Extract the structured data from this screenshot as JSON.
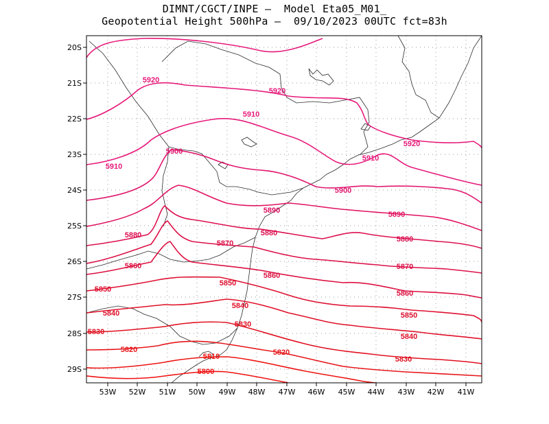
{
  "header": {
    "line1": "DIMNT/CGCT/INPE –  Model Eta05_M01_",
    "line2": "Geopotential Height 500hPa –  09/10/2023 00UTC fct=83h"
  },
  "map": {
    "lat_labels": [
      "20S",
      "21S",
      "22S",
      "23S",
      "24S",
      "25S",
      "26S",
      "27S",
      "28S",
      "29S"
    ],
    "lon_labels": [
      "53W",
      "52W",
      "51W",
      "50W",
      "49W",
      "48W",
      "47W",
      "46W",
      "45W",
      "44W",
      "43W",
      "42W",
      "41W"
    ],
    "contour_labels": {
      "c5920a": "5920",
      "c5920b": "5920",
      "c5920c": "5920",
      "c5910a": "5910",
      "c5910b": "5910",
      "c5910c": "5910",
      "c5900a": "5900",
      "c5900b": "5900",
      "c5890a": "5890",
      "c5890b": "5890",
      "c5880a": "5880",
      "c5880b": "5880",
      "c5880c": "5880",
      "c5870a": "5870",
      "c5870b": "5870",
      "c5860a": "5860",
      "c5860b": "5860",
      "c5860c": "5860",
      "c5850a": "5850",
      "c5850b": "5850",
      "c5850c": "5850",
      "c5840a": "5840",
      "c5840b": "5840",
      "c5840c": "5840",
      "c5830a": "5830",
      "c5830b": "5830",
      "c5830c": "5830",
      "c5820a": "5820",
      "c5820b": "5820",
      "c5810": "5810",
      "c5800": "5800"
    },
    "colors": {
      "c5920": "#e6197a",
      "c5910": "#e6197a",
      "c5900": "#e0166e",
      "c5890": "#e01060",
      "c5880": "#dc1050",
      "c5870": "#dc1048",
      "c5860": "#dc1040",
      "c5850": "#de1030",
      "c5840": "#e01028",
      "c5830": "#e01020",
      "c5820": "#e61418",
      "c5810": "#ec1410",
      "c5800": "#f01010"
    }
  }
}
